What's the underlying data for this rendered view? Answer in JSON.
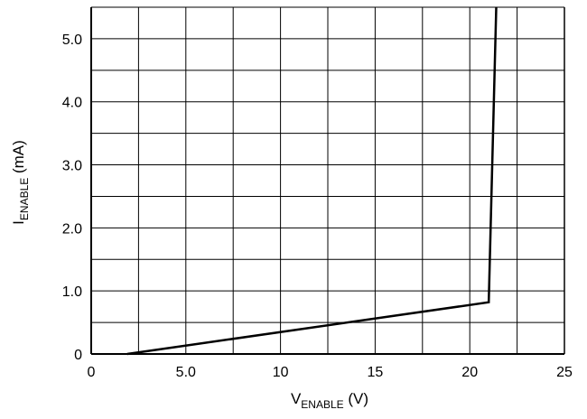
{
  "chart_data": {
    "type": "line",
    "title": "",
    "xlabel": {
      "main": "V",
      "subscript": "ENABLE",
      "unit": " (V)"
    },
    "ylabel": {
      "main": "I",
      "subscript": "ENABLE",
      "unit": " (mA)"
    },
    "xlim": [
      0,
      25
    ],
    "ylim": [
      0,
      5.5
    ],
    "grid": true,
    "x_ticks": [
      0,
      5,
      10,
      15,
      20,
      25
    ],
    "x_tick_labels": [
      "0",
      "5.0",
      "10",
      "15",
      "20",
      "25"
    ],
    "y_ticks": [
      0,
      1,
      2,
      3,
      4,
      5
    ],
    "y_tick_labels": [
      "0",
      "1.0",
      "2.0",
      "3.0",
      "4.0",
      "5.0"
    ],
    "x_grid_step": 2.5,
    "y_grid_step": 0.5,
    "series": [
      {
        "x": [
          1.9,
          21.0,
          21.4
        ],
        "y": [
          0,
          0.82,
          5.5
        ]
      }
    ]
  }
}
